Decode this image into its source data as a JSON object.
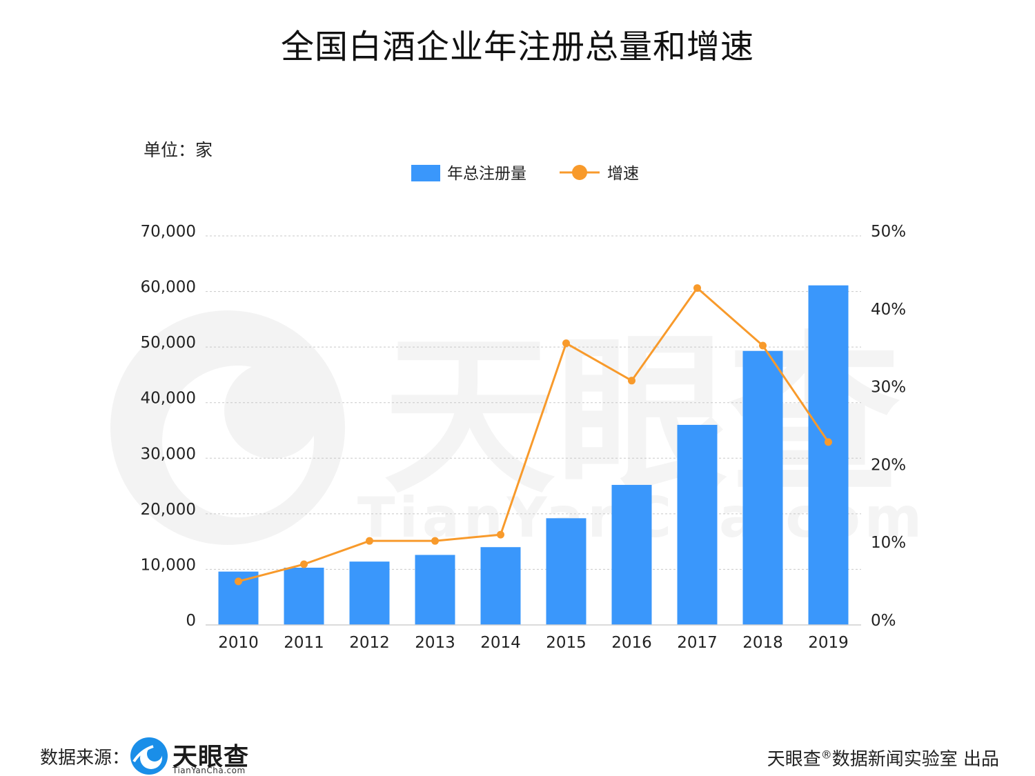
{
  "title": "全国白酒企业年注册总量和增速",
  "unit_label": "单位：家",
  "footer": {
    "source_label": "数据来源：",
    "logo_text": "天眼查",
    "logo_url": "TianYanCha.com",
    "credit_prefix": "天眼查",
    "credit_mark": "®",
    "credit_suffix": "数据新闻实验室 出品"
  },
  "watermark": {
    "text": "天眼查",
    "url": "TianYanCha.com"
  },
  "chart_data": {
    "type": "bar",
    "title": "全国白酒企业年注册总量和增速",
    "categories": [
      "2010",
      "2011",
      "2012",
      "2013",
      "2014",
      "2015",
      "2016",
      "2017",
      "2018",
      "2019"
    ],
    "series": [
      {
        "name": "年总注册量",
        "type": "bar",
        "axis": "left",
        "color": "#3a97fb",
        "values": [
          9600,
          10300,
          11400,
          12600,
          14000,
          19200,
          25200,
          36000,
          49300,
          61100
        ]
      },
      {
        "name": "增速",
        "type": "line",
        "axis": "right",
        "color": "#f89a2b",
        "values": [
          5.6,
          7.8,
          10.8,
          10.8,
          11.6,
          36.2,
          31.4,
          43.3,
          35.9,
          23.5
        ]
      }
    ],
    "y_left": {
      "ylim": [
        0,
        70000
      ],
      "ticks": [
        "0",
        "10,000",
        "20,000",
        "30,000",
        "40,000",
        "50,000",
        "60,000",
        "70,000"
      ]
    },
    "y_right": {
      "ylim": [
        0,
        50
      ],
      "ticks": [
        "0%",
        "10%",
        "20%",
        "30%",
        "40%",
        "50%"
      ]
    },
    "grid": true,
    "legend_position": "top-center"
  }
}
